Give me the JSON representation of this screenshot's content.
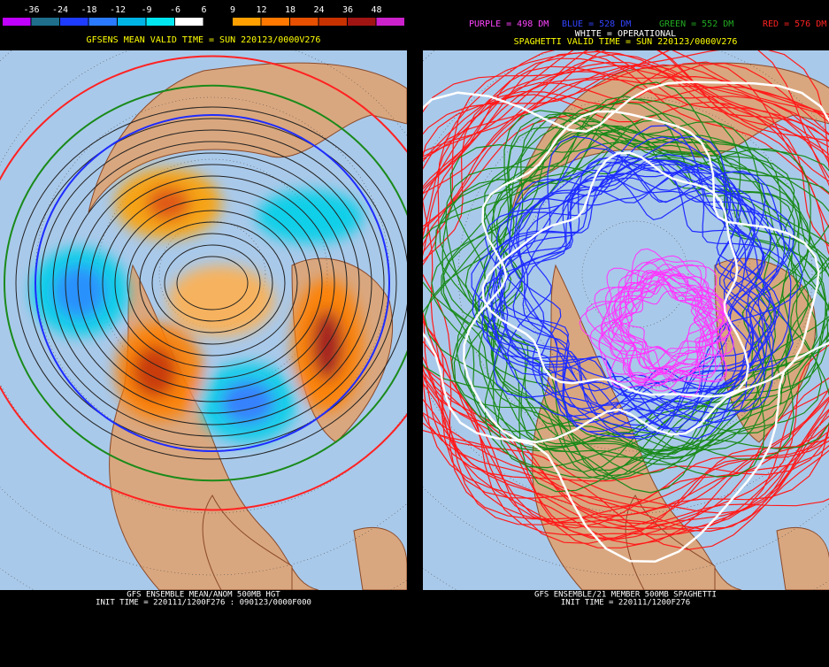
{
  "colorbar": {
    "labels": [
      -36,
      -24,
      -18,
      -12,
      -9,
      -6,
      6,
      9,
      12,
      18,
      24,
      36,
      48
    ]
  },
  "left_panel": {
    "title": "GFSENS MEAN VALID TIME = SUN 220123/0000V276",
    "footer": [
      "GFS ENSEMBLE MEAN/ANOM 500MB HGT",
      "INIT TIME = 220111/1200F276 : 090123/0000F000"
    ]
  },
  "right_panel": {
    "legend": [
      "PURPLE = 498 DM",
      "BLUE = 528 DM",
      "GREEN = 552 DM",
      "RED = 576 DM"
    ],
    "title": "SPAGHETTI VALID TIME = SUN 220123/0000V276",
    "subtitle": "WHITE = OPERATIONAL",
    "footer": [
      "GFS ENSEMBLE/21 MEMBER 500MB SPAGHETTI",
      "INIT TIME = 220111/1200F276"
    ]
  }
}
